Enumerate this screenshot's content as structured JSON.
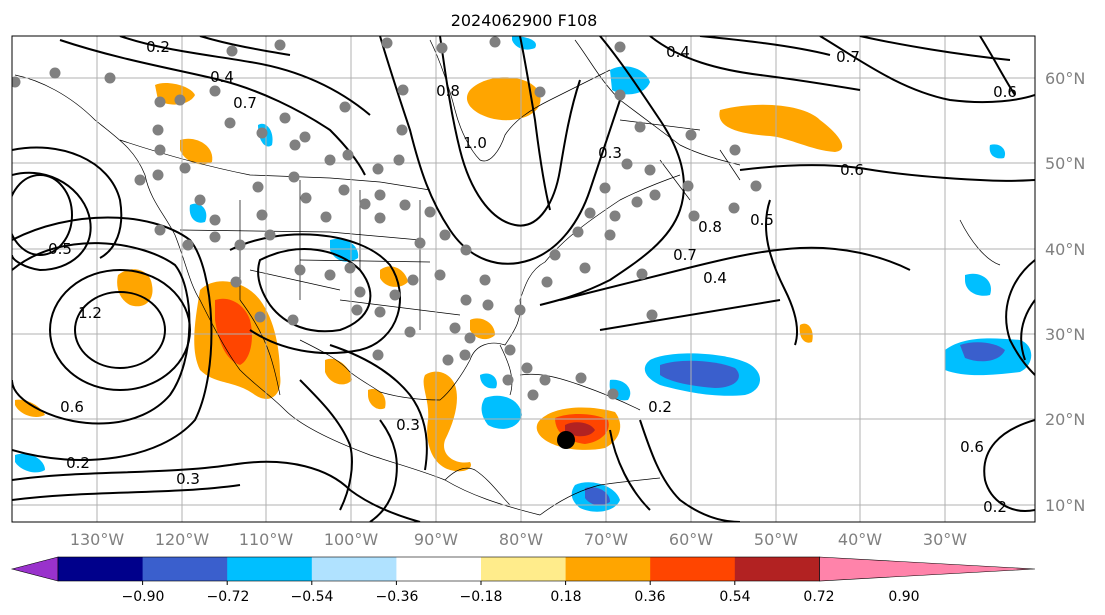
{
  "title": "2024062900 F108",
  "map": {
    "lat_labels": [
      "60°N",
      "50°N",
      "40°N",
      "30°N",
      "20°N",
      "10°N"
    ],
    "lon_labels": [
      "130°W",
      "120°W",
      "110°W",
      "100°W",
      "90°W",
      "80°W",
      "70°W",
      "60°W",
      "50°W",
      "40°W",
      "30°W"
    ],
    "lon_range": [
      -137,
      -16
    ],
    "lat_range": [
      8,
      66
    ],
    "contour_labels": [
      "0.2",
      "0.4",
      "0.7",
      "0.8",
      "1.0",
      "0.3",
      "0.6",
      "0.5",
      "0.7",
      "0.8",
      "0.6",
      "0.4",
      "0.5",
      "1.2",
      "0.6",
      "0.2",
      "0.3",
      "0.3",
      "0.2",
      "0.7",
      "0.6",
      "0.2",
      "0.4"
    ]
  },
  "colorbar": {
    "ticks": [
      "−0.90",
      "−0.72",
      "−0.54",
      "−0.36",
      "−0.18",
      "0.18",
      "0.36",
      "0.54",
      "0.72",
      "0.90"
    ],
    "colors": [
      "#9932cc",
      "#00008b",
      "#3a5fcd",
      "#00bfff",
      "#b0e2ff",
      "#ffffff",
      "#ffec8b",
      "#ffa500",
      "#ff4500",
      "#b22222",
      "#ff83aa"
    ]
  }
}
